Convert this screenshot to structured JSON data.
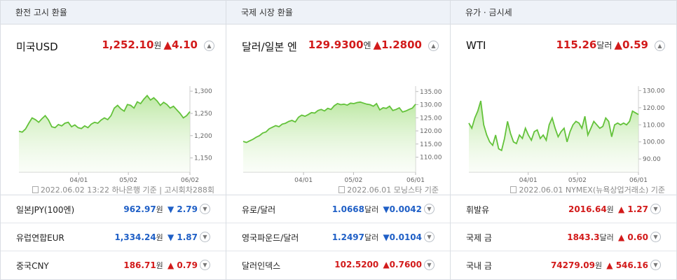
{
  "colors": {
    "up": "#d21a1a",
    "down": "#1f5fc6",
    "line": "#63c23a",
    "fill_top": "#bde8a4",
    "fill_bottom": "#f3fbee"
  },
  "panels": [
    {
      "title": "환전 고시 환율",
      "name": "미국USD",
      "value": "1,252.10",
      "unit": "원",
      "direction": "up",
      "change": "▲4.10",
      "meta": "2022.06.02 13:22 하나은행 기준 | 고시회차288회",
      "rows": [
        {
          "name": "일본JPY(100엔)",
          "value": "962.97",
          "unit": "원",
          "direction": "down",
          "change": "▼ 2.79"
        },
        {
          "name": "유럽연합EUR",
          "value": "1,334.24",
          "unit": "원",
          "direction": "down",
          "change": "▼ 1.87"
        },
        {
          "name": "중국CNY",
          "value": "186.71",
          "unit": "원",
          "direction": "up",
          "change": "▲ 0.79"
        }
      ]
    },
    {
      "title": "국제 시장 환율",
      "name": "달러/일본 엔",
      "value": "129.9300",
      "unit": "엔",
      "direction": "up",
      "change": "▲1.2800",
      "meta": "2022.06.01 모닝스타 기준",
      "rows": [
        {
          "name": "유로/달러",
          "value": "1.0668",
          "unit": "달러",
          "direction": "down",
          "change": "▼0.0042"
        },
        {
          "name": "영국파운드/달러",
          "value": "1.2497",
          "unit": "달러",
          "direction": "down",
          "change": "▼0.0104"
        },
        {
          "name": "달러인덱스",
          "value": "102.5200",
          "unit": "",
          "direction": "up",
          "change": "▲0.7600"
        }
      ]
    },
    {
      "title": "유가 · 금시세",
      "name": "WTI",
      "value": "115.26",
      "unit": "달러",
      "direction": "up",
      "change": "▲0.59",
      "meta": "2022.06.01 NYMEX(뉴욕상업거래소) 기준",
      "rows": [
        {
          "name": "휘발유",
          "value": "2016.64",
          "unit": "원",
          "direction": "up",
          "change": "▲ 1.27"
        },
        {
          "name": "국제 금",
          "value": "1843.3",
          "unit": "달러",
          "direction": "up",
          "change": "▲ 0.60"
        },
        {
          "name": "국내 금",
          "value": "74279.09",
          "unit": "원",
          "direction": "up",
          "change": "▲ 546.16"
        }
      ]
    }
  ],
  "chart_data": [
    {
      "type": "area",
      "xticks": [
        "04/01",
        "05/02",
        "06/02"
      ],
      "yticks": [
        "1,300",
        "1,250",
        "1,200",
        "1,150"
      ],
      "ylim": [
        1140,
        1305
      ],
      "values": [
        1210,
        1208,
        1215,
        1228,
        1240,
        1236,
        1230,
        1238,
        1245,
        1235,
        1220,
        1218,
        1225,
        1222,
        1228,
        1230,
        1220,
        1224,
        1218,
        1216,
        1222,
        1218,
        1226,
        1230,
        1228,
        1235,
        1240,
        1236,
        1245,
        1262,
        1268,
        1260,
        1255,
        1270,
        1268,
        1262,
        1276,
        1272,
        1282,
        1290,
        1280,
        1285,
        1278,
        1268,
        1275,
        1270,
        1262,
        1266,
        1258,
        1250,
        1240,
        1245,
        1254
      ]
    },
    {
      "type": "area",
      "xticks": [
        "04/01",
        "05/02",
        "06/01"
      ],
      "yticks": [
        "135.00",
        "130.00",
        "125.00",
        "120.00",
        "115.00",
        "110.00"
      ],
      "ylim": [
        108,
        136
      ],
      "values": [
        116.0,
        115.6,
        116.2,
        116.8,
        117.6,
        118.2,
        119.2,
        119.6,
        120.8,
        121.4,
        122.0,
        121.6,
        122.6,
        122.9,
        123.6,
        124.0,
        123.4,
        125.2,
        126.0,
        125.6,
        126.2,
        127.0,
        126.8,
        127.8,
        128.2,
        127.6,
        128.6,
        128.2,
        129.6,
        130.4,
        130.0,
        130.2,
        129.8,
        130.6,
        130.4,
        130.8,
        131.0,
        130.6,
        130.2,
        130.0,
        129.4,
        130.4,
        128.0,
        128.8,
        128.6,
        129.4,
        127.8,
        128.2,
        128.8,
        127.2,
        127.6,
        128.2,
        128.7,
        130.2
      ]
    },
    {
      "type": "area",
      "xticks": [
        "04/01",
        "05/02",
        "06/01"
      ],
      "yticks": [
        "130.00",
        "120.00",
        "110.00",
        "100.00",
        "90.00"
      ],
      "ylim": [
        88,
        131
      ],
      "values": [
        111,
        108,
        114,
        118,
        124,
        110,
        104,
        100,
        98,
        104,
        96,
        95,
        102,
        112,
        105,
        100,
        99,
        104,
        102,
        108,
        104,
        101,
        106,
        107,
        102,
        104,
        101,
        110,
        114,
        108,
        103,
        106,
        108,
        100,
        106,
        110,
        112,
        111,
        108,
        115,
        104,
        108,
        112,
        110,
        108,
        109,
        114,
        112,
        103,
        110,
        111,
        110,
        111,
        110,
        112,
        118,
        117,
        116
      ]
    }
  ]
}
